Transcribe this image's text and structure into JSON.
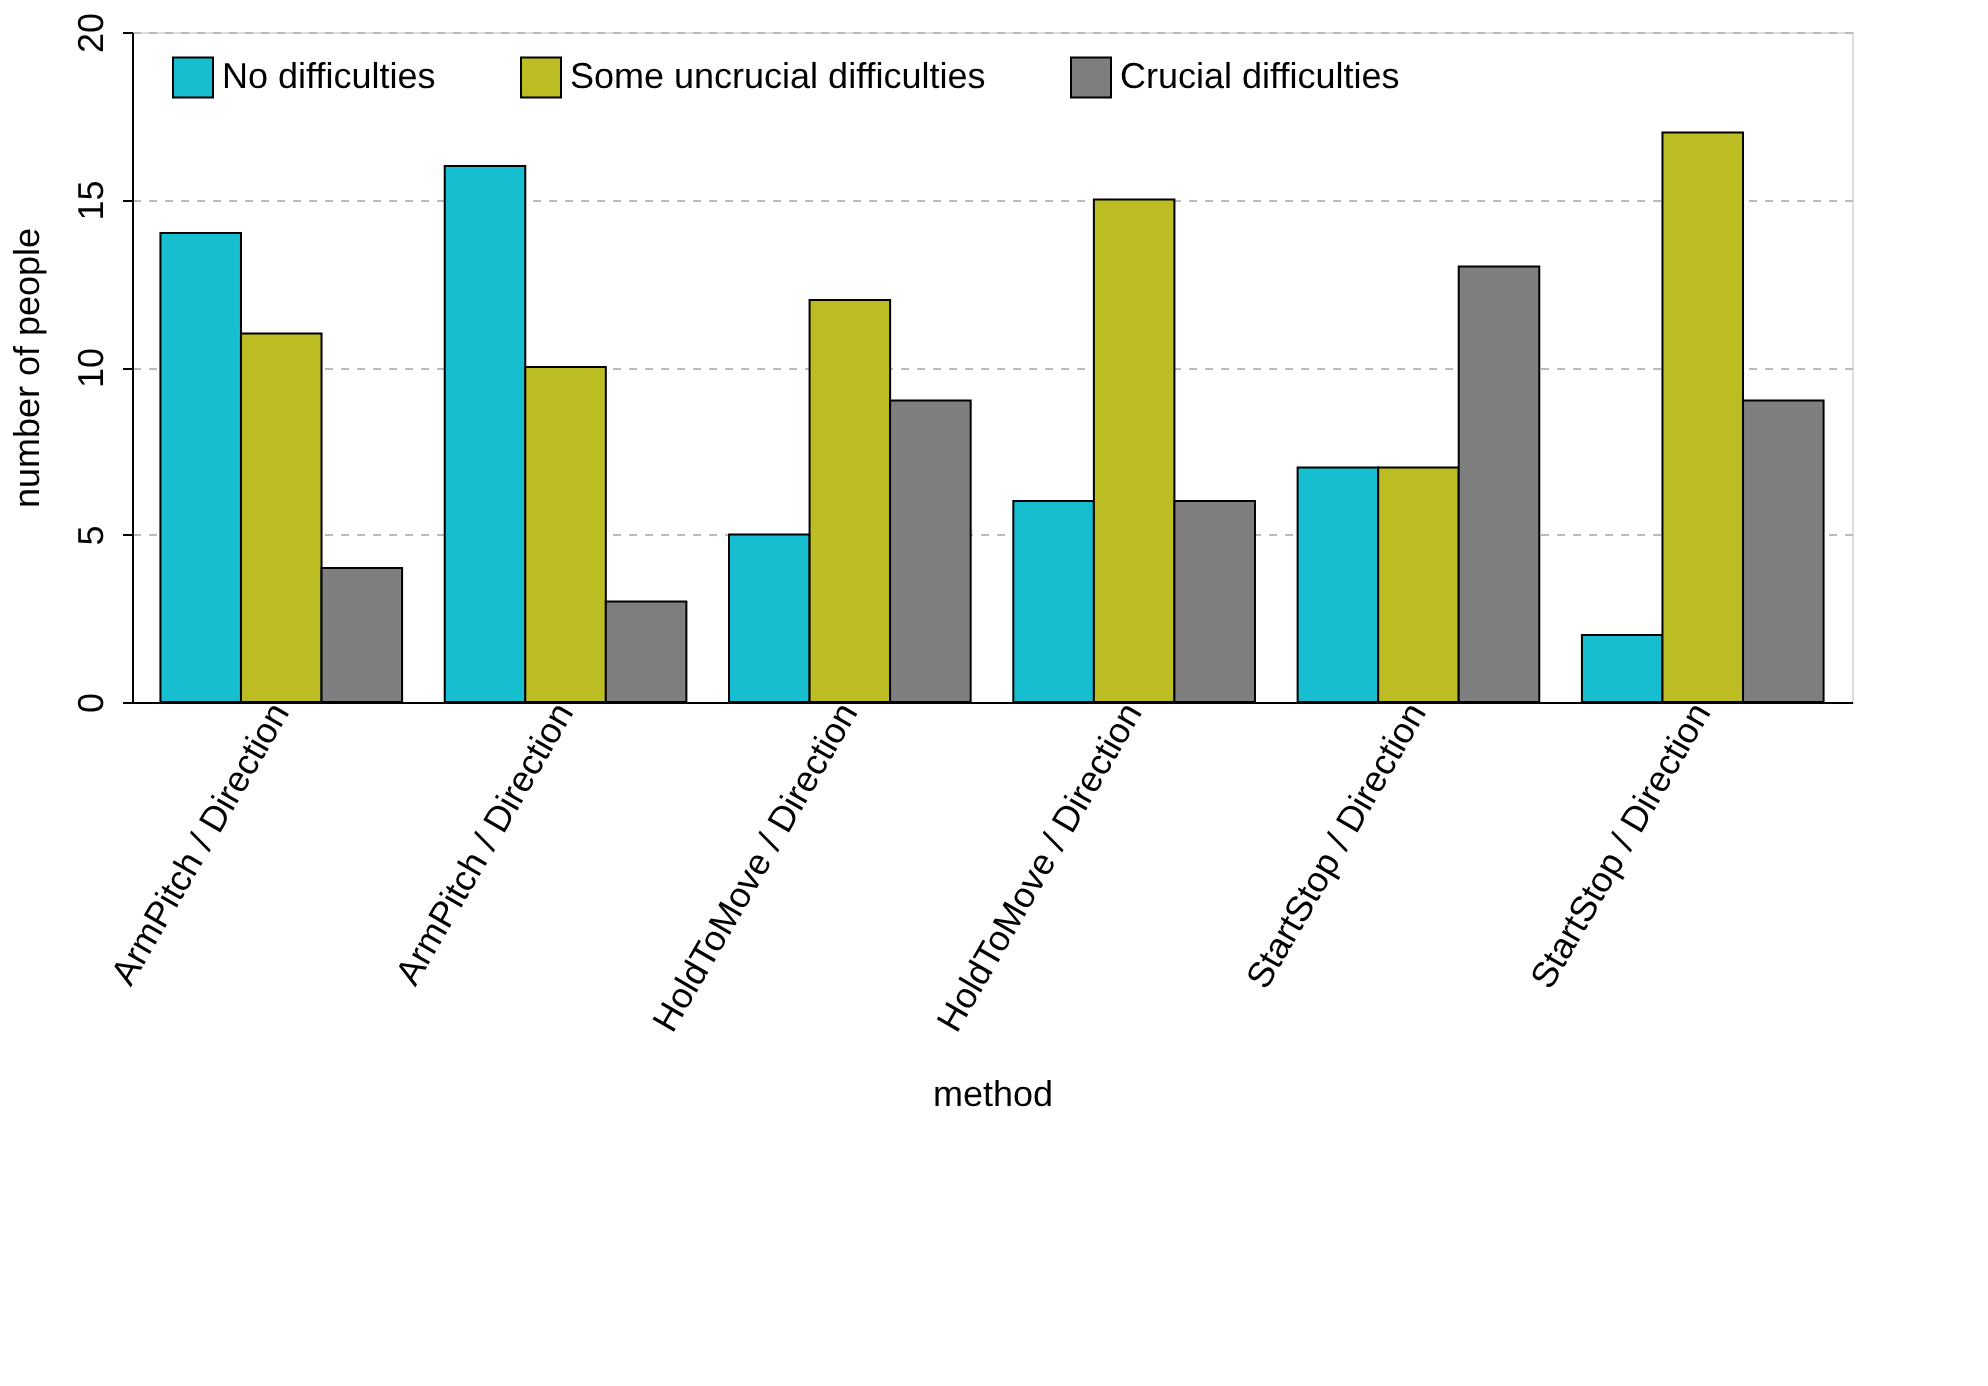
{
  "chart_data": {
    "type": "bar",
    "xlabel": "method",
    "ylabel": "number of people",
    "categories": [
      "ArmPitch / Direction",
      "ArmPitch / Direction",
      "HoldToMove / Direction",
      "HoldToMove / Direction",
      "StartStop / Direction",
      "StartStop / Direction"
    ],
    "series": [
      {
        "name": "No difficulties",
        "color": "#17becf",
        "values": [
          14,
          16,
          5,
          6,
          7,
          2
        ]
      },
      {
        "name": "Some uncrucial difficulties",
        "color": "#bcbd22",
        "values": [
          11,
          10,
          12,
          15,
          7,
          17
        ]
      },
      {
        "name": "Crucial difficulties",
        "color": "#7f7f7f",
        "values": [
          4,
          3,
          9,
          6,
          13,
          9
        ]
      }
    ],
    "ylim": [
      0,
      20
    ],
    "yticks": [
      0,
      5,
      10,
      15,
      20
    ],
    "grid": "y",
    "legend": "top"
  }
}
